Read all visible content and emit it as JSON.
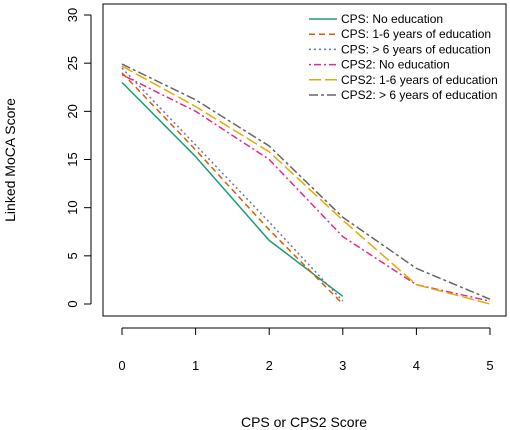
{
  "chart_data": {
    "type": "line",
    "title": "",
    "xlabel": "CPS or CPS2 Score",
    "ylabel": "Linked MoCA Score",
    "xlim": [
      0,
      5
    ],
    "ylim": [
      0,
      30
    ],
    "x_ticks": [
      "0",
      "1",
      "2",
      "3",
      "4",
      "5"
    ],
    "y_ticks": [
      "0",
      "5",
      "10",
      "15",
      "20",
      "25",
      "30"
    ],
    "grid": false,
    "legend_position": "top-right",
    "series": [
      {
        "name": "CPS: No education",
        "color": "#1a9e77",
        "dash": "solid",
        "x": [
          0,
          1,
          2,
          3
        ],
        "y": [
          23.0,
          15.3,
          6.6,
          0.8
        ]
      },
      {
        "name": "CPS: 1-6 years of education",
        "color": "#d95f02",
        "dash": "dashed",
        "x": [
          0,
          1,
          2,
          3
        ],
        "y": [
          24.0,
          16.0,
          7.7,
          0.0
        ]
      },
      {
        "name": "CPS: > 6 years of education",
        "color": "#7570b3",
        "dash": "dotted",
        "x": [
          0,
          1,
          2,
          3
        ],
        "y": [
          24.5,
          16.5,
          8.5,
          0.3
        ]
      },
      {
        "name": "CPS2: No education",
        "color": "#e7298a",
        "dash": "dotdash",
        "x": [
          0,
          1,
          2,
          3,
          4,
          5
        ],
        "y": [
          23.8,
          20.0,
          15.0,
          7.0,
          2.0,
          0.3
        ]
      },
      {
        "name": "CPS2: 1-6 years of education",
        "color": "#e6ab02",
        "dash": "longdash",
        "x": [
          0,
          1,
          2,
          3,
          4,
          5
        ],
        "y": [
          24.7,
          20.5,
          15.8,
          8.7,
          2.0,
          0.0
        ]
      },
      {
        "name": "CPS2: > 6 years of education",
        "color": "#666666",
        "dash": "twodash",
        "x": [
          0,
          1,
          2,
          3,
          4,
          5
        ],
        "y": [
          24.9,
          21.2,
          16.4,
          9.0,
          3.7,
          0.5
        ]
      }
    ]
  }
}
